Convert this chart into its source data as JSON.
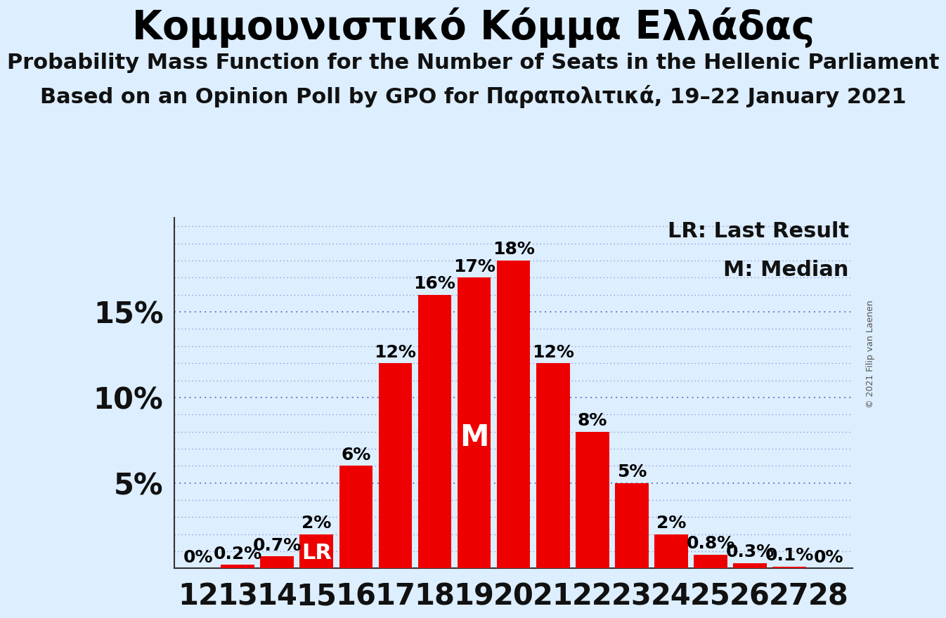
{
  "title": "Κομμουνιστικό Κόμμα Ελλάδας",
  "subtitle1": "Probability Mass Function for the Number of Seats in the Hellenic Parliament",
  "subtitle2": "Based on an Opinion Poll by GPO for Παραπολιτικά, 19–22 January 2021",
  "copyright": "© 2021 Filip van Laenen",
  "categories": [
    12,
    13,
    14,
    15,
    16,
    17,
    18,
    19,
    20,
    21,
    22,
    23,
    24,
    25,
    26,
    27,
    28
  ],
  "values": [
    0.0,
    0.2,
    0.7,
    2.0,
    6.0,
    12.0,
    16.0,
    17.0,
    18.0,
    12.0,
    8.0,
    5.0,
    2.0,
    0.8,
    0.3,
    0.1,
    0.0
  ],
  "bar_color": "#ee0000",
  "background_color": "#ddeeff",
  "label_color": "#000000",
  "lr_bar": 15,
  "median_bar": 19,
  "lr_label": "LR",
  "median_label": "M",
  "lr_label_color": "#ffffff",
  "median_label_color": "#ffffff",
  "yticks": [
    5,
    10,
    15
  ],
  "ylim": [
    0,
    20.5
  ],
  "ylabel_fontsize": 30,
  "xlabel_fontsize": 30,
  "title_fontsize": 40,
  "subtitle_fontsize": 22,
  "bar_label_fontsize": 18,
  "lr_annotation_fontsize": 22,
  "m_annotation_fontsize": 30,
  "legend_fontsize": 22
}
